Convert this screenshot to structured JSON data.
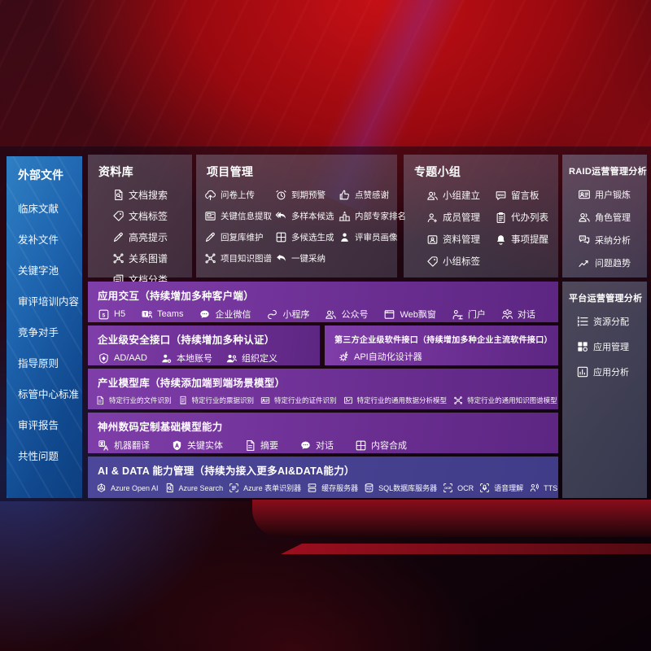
{
  "colors": {
    "sidebar_blue": "#1d63ad",
    "panel_gray": "#8a93ad",
    "row_purple": "#6c2f93",
    "row_indigo": "#45418f",
    "background_red": "#b00d13",
    "text": "#ffffff"
  },
  "sidebar": {
    "title": "外部文件",
    "items": [
      "临床文献",
      "发补文件",
      "关键字池",
      "审评培训内容",
      "竞争对手",
      "指导原则",
      "标管中心标准",
      "审评报告",
      "共性问题"
    ]
  },
  "panels": {
    "library": {
      "title": "资料库",
      "items": [
        {
          "label": "文档搜索",
          "icon": "docsearch"
        },
        {
          "label": "文档标签",
          "icon": "tag"
        },
        {
          "label": "高亮提示",
          "icon": "pen"
        },
        {
          "label": "关系图谱",
          "icon": "graph"
        },
        {
          "label": "文档分类",
          "icon": "docs"
        }
      ]
    },
    "project": {
      "title": "项目管理",
      "items": [
        {
          "label": "问卷上传",
          "icon": "cloudup"
        },
        {
          "label": "到期预警",
          "icon": "alarm"
        },
        {
          "label": "点赞感谢",
          "icon": "thumb"
        },
        {
          "label": "关键信息提取",
          "icon": "extract"
        },
        {
          "label": "多样本候选",
          "icon": "reply2"
        },
        {
          "label": "内部专家排名",
          "icon": "rank"
        },
        {
          "label": "回复库维护",
          "icon": "pen"
        },
        {
          "label": "多候选生成",
          "icon": "gridplus"
        },
        {
          "label": "评审员画像",
          "icon": "person"
        },
        {
          "label": "项目知识图谱",
          "icon": "graph"
        },
        {
          "label": "一键采纳",
          "icon": "reply"
        }
      ]
    },
    "groups": {
      "title": "专题小组",
      "items": [
        {
          "label": "小组建立",
          "icon": "people"
        },
        {
          "label": "留言板",
          "icon": "bbs"
        },
        {
          "label": "成员管理",
          "icon": "personplus"
        },
        {
          "label": "代办列表",
          "icon": "clipboard"
        },
        {
          "label": "资料管理",
          "icon": "card"
        },
        {
          "label": "事项提醒",
          "icon": "bell"
        },
        {
          "label": "小组标签",
          "icon": "tag"
        }
      ]
    },
    "raid": {
      "title": "RAID运营管理分析",
      "items": [
        {
          "label": "用户锻炼",
          "icon": "idcard"
        },
        {
          "label": "角色管理",
          "icon": "people"
        },
        {
          "label": "采纳分析",
          "icon": "chats"
        },
        {
          "label": "问题趋势",
          "icon": "trend"
        }
      ]
    },
    "platform": {
      "title": "平台运营管理分析",
      "items": [
        {
          "label": "资源分配",
          "icon": "list"
        },
        {
          "label": "应用管理",
          "icon": "apps"
        },
        {
          "label": "应用分析",
          "icon": "chartbox"
        }
      ]
    },
    "interaction": {
      "title": "应用交互（持续增加多种客户端）",
      "items": [
        {
          "label": "H5",
          "icon": "h5"
        },
        {
          "label": "Teams",
          "icon": "teams"
        },
        {
          "label": "企业微信",
          "icon": "wechat"
        },
        {
          "label": "小程序",
          "icon": "scurve"
        },
        {
          "label": "公众号",
          "icon": "people"
        },
        {
          "label": "Web飘窗",
          "icon": "window"
        },
        {
          "label": "门户",
          "icon": "portal"
        },
        {
          "label": "对话",
          "icon": "dialog"
        }
      ]
    },
    "security": {
      "title": "企业级安全接口（持续增加多种认证）",
      "items": [
        {
          "label": "AD/AAD",
          "icon": "shieldad"
        },
        {
          "label": "本地账号",
          "icon": "persongear"
        },
        {
          "label": "组织定义",
          "icon": "org"
        }
      ]
    },
    "thirdparty": {
      "title": "第三方企业级软件接口（持续增加多种企业主流软件接口）",
      "items": [
        {
          "label": "API自动化设计器",
          "icon": "apigear"
        }
      ]
    },
    "industry": {
      "title": "产业模型库（持续添加端到端场景模型）",
      "items": [
        {
          "label": "特定行业的文件识别",
          "icon": "doc"
        },
        {
          "label": "特定行业的票据识别",
          "icon": "receipt"
        },
        {
          "label": "特定行业的证件识别",
          "icon": "idcard"
        },
        {
          "label": "特定行业的通用数据分析模型",
          "icon": "imagechart"
        },
        {
          "label": "特定行业的通用知识图谱模型",
          "icon": "graph"
        }
      ]
    },
    "basemodel": {
      "title": "神州数码定制基础模型能力",
      "items": [
        {
          "label": "机器翻译",
          "icon": "translate"
        },
        {
          "label": "关键实体",
          "icon": "entity"
        },
        {
          "label": "摘要",
          "icon": "doc"
        },
        {
          "label": "对话",
          "icon": "wechat"
        },
        {
          "label": "内容合成",
          "icon": "gridplus"
        }
      ]
    },
    "aidata": {
      "title": "AI & DATA 能力管理（持续为接入更多AI&DATA能力）",
      "items": [
        {
          "label": "Azure Open AI",
          "icon": "openai"
        },
        {
          "label": "Azure Search",
          "icon": "docsearch"
        },
        {
          "label": "Azure 表单识别器",
          "icon": "formrec"
        },
        {
          "label": "缓存服务器",
          "icon": "server"
        },
        {
          "label": "SQL数据库服务器",
          "icon": "sqldb"
        },
        {
          "label": "OCR",
          "icon": "ocr"
        },
        {
          "label": "语音理解",
          "icon": "speech"
        },
        {
          "label": "TTS",
          "icon": "tts"
        }
      ]
    }
  }
}
